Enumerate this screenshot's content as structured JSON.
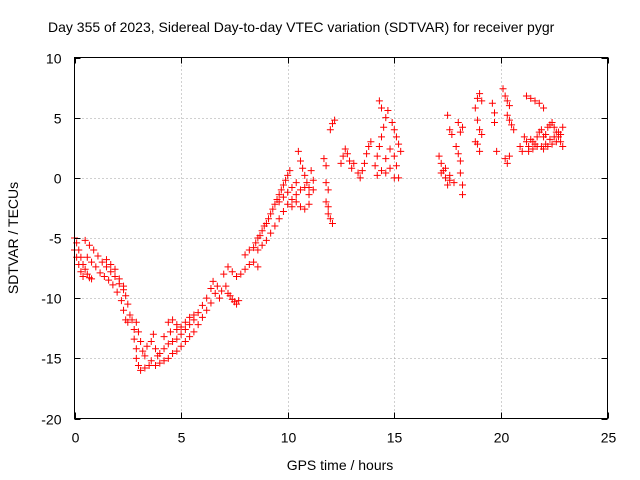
{
  "chart_data": {
    "type": "scatter",
    "title": "Day 355 of 2023, Sidereal Day-to-day VTEC variation (SDTVAR) for receiver pygr",
    "xlabel": "GPS time / hours",
    "ylabel": "SDTVAR / TECUs",
    "xlim": [
      0,
      25
    ],
    "ylim": [
      -20,
      10
    ],
    "xticks": [
      0,
      5,
      10,
      15,
      20,
      25
    ],
    "yticks": [
      -20,
      -15,
      -10,
      -5,
      0,
      5,
      10
    ],
    "xtick_labels": [
      "0",
      "5",
      "10",
      "15",
      "20",
      "25"
    ],
    "ytick_labels": [
      "-20",
      "-15",
      "-10",
      "-5",
      "0",
      "5",
      "10"
    ],
    "grid": true,
    "marker": "+",
    "color": "#ff0000",
    "series": [
      {
        "name": "SDTVAR",
        "points": [
          [
            0.0,
            -5.0
          ],
          [
            0.1,
            -5.4
          ],
          [
            0.2,
            -6.0
          ],
          [
            0.3,
            -6.6
          ],
          [
            0.4,
            -7.2
          ],
          [
            0.5,
            -7.6
          ],
          [
            0.6,
            -8.0
          ],
          [
            0.7,
            -8.3
          ],
          [
            0.8,
            -8.4
          ],
          [
            0.0,
            -6.0
          ],
          [
            0.1,
            -6.6
          ],
          [
            0.2,
            -7.2
          ],
          [
            0.3,
            -7.8
          ],
          [
            0.4,
            -8.2
          ],
          [
            0.5,
            -5.2
          ],
          [
            0.7,
            -5.6
          ],
          [
            0.9,
            -6.0
          ],
          [
            1.1,
            -6.5
          ],
          [
            1.3,
            -7.0
          ],
          [
            1.5,
            -7.4
          ],
          [
            1.7,
            -7.8
          ],
          [
            1.9,
            -8.2
          ],
          [
            2.1,
            -8.8
          ],
          [
            2.3,
            -9.3
          ],
          [
            2.4,
            -9.8
          ],
          [
            2.5,
            -10.5
          ],
          [
            0.6,
            -6.6
          ],
          [
            0.8,
            -7.0
          ],
          [
            1.0,
            -7.4
          ],
          [
            1.2,
            -7.9
          ],
          [
            1.4,
            -8.2
          ],
          [
            1.6,
            -8.5
          ],
          [
            1.8,
            -8.9
          ],
          [
            2.0,
            -9.5
          ],
          [
            2.2,
            -10.2
          ],
          [
            2.3,
            -11.0
          ],
          [
            2.4,
            -11.8
          ],
          [
            2.5,
            -12.0
          ],
          [
            1.5,
            -6.8
          ],
          [
            1.7,
            -7.2
          ],
          [
            1.9,
            -7.6
          ],
          [
            2.1,
            -8.4
          ],
          [
            2.3,
            -9.0
          ],
          [
            2.6,
            -11.4
          ],
          [
            2.7,
            -11.8
          ],
          [
            2.8,
            -12.6
          ],
          [
            2.8,
            -13.4
          ],
          [
            2.9,
            -14.2
          ],
          [
            2.9,
            -15.0
          ],
          [
            3.0,
            -15.6
          ],
          [
            3.1,
            -16.0
          ],
          [
            3.3,
            -15.8
          ],
          [
            3.5,
            -15.6
          ],
          [
            2.9,
            -12.0
          ],
          [
            3.0,
            -12.8
          ],
          [
            3.1,
            -13.6
          ],
          [
            3.2,
            -14.4
          ],
          [
            3.3,
            -14.8
          ],
          [
            3.4,
            -14.0
          ],
          [
            3.6,
            -13.6
          ],
          [
            3.8,
            -14.2
          ],
          [
            3.9,
            -14.8
          ],
          [
            3.7,
            -13.0
          ],
          [
            3.6,
            -15.2
          ],
          [
            3.8,
            -15.6
          ],
          [
            4.0,
            -15.4
          ],
          [
            4.2,
            -15.2
          ],
          [
            4.4,
            -15.0
          ],
          [
            4.6,
            -14.6
          ],
          [
            4.8,
            -14.4
          ],
          [
            5.0,
            -14.0
          ],
          [
            5.2,
            -13.6
          ],
          [
            5.4,
            -13.2
          ],
          [
            5.6,
            -12.8
          ],
          [
            5.8,
            -12.2
          ],
          [
            6.0,
            -11.6
          ],
          [
            6.2,
            -11.0
          ],
          [
            6.4,
            -10.4
          ],
          [
            6.6,
            -9.6
          ],
          [
            4.0,
            -14.6
          ],
          [
            4.2,
            -14.2
          ],
          [
            4.4,
            -13.8
          ],
          [
            4.6,
            -13.6
          ],
          [
            4.8,
            -13.4
          ],
          [
            5.0,
            -13.0
          ],
          [
            5.2,
            -12.6
          ],
          [
            5.4,
            -12.2
          ],
          [
            5.6,
            -11.8
          ],
          [
            5.8,
            -11.2
          ],
          [
            6.0,
            -10.6
          ],
          [
            6.2,
            -10.0
          ],
          [
            6.4,
            -9.2
          ],
          [
            6.5,
            -8.6
          ],
          [
            4.4,
            -12.0
          ],
          [
            4.6,
            -11.8
          ],
          [
            4.8,
            -12.2
          ],
          [
            5.0,
            -12.4
          ],
          [
            5.2,
            -12.0
          ],
          [
            5.4,
            -11.6
          ],
          [
            5.6,
            -11.4
          ],
          [
            4.2,
            -13.2
          ],
          [
            4.5,
            -12.8
          ],
          [
            4.8,
            -12.6
          ],
          [
            6.7,
            -9.0
          ],
          [
            6.9,
            -9.4
          ],
          [
            6.8,
            -10.0
          ],
          [
            7.0,
            -8.0
          ],
          [
            7.1,
            -9.0
          ],
          [
            7.2,
            -9.6
          ],
          [
            7.3,
            -9.8
          ],
          [
            7.4,
            -10.1
          ],
          [
            7.5,
            -10.3
          ],
          [
            7.6,
            -10.5
          ],
          [
            7.7,
            -10.2
          ],
          [
            7.2,
            -7.4
          ],
          [
            7.4,
            -7.8
          ],
          [
            7.6,
            -8.2
          ],
          [
            7.8,
            -8.0
          ],
          [
            8.0,
            -7.6
          ],
          [
            8.2,
            -7.2
          ],
          [
            8.4,
            -7.0
          ],
          [
            8.6,
            -7.4
          ],
          [
            8.0,
            -6.4
          ],
          [
            8.2,
            -6.0
          ],
          [
            8.4,
            -5.8
          ],
          [
            8.5,
            -5.4
          ],
          [
            8.6,
            -5.0
          ],
          [
            8.7,
            -4.8
          ],
          [
            8.8,
            -4.4
          ],
          [
            8.9,
            -4.0
          ],
          [
            9.0,
            -3.8
          ],
          [
            9.1,
            -3.4
          ],
          [
            9.2,
            -3.0
          ],
          [
            9.3,
            -2.6
          ],
          [
            9.4,
            -2.2
          ],
          [
            9.5,
            -1.8
          ],
          [
            9.6,
            -1.4
          ],
          [
            9.7,
            -1.0
          ],
          [
            9.8,
            -0.6
          ],
          [
            9.9,
            -0.2
          ],
          [
            10.0,
            0.2
          ],
          [
            10.1,
            0.6
          ],
          [
            8.6,
            -6.0
          ],
          [
            8.8,
            -5.6
          ],
          [
            9.0,
            -5.2
          ],
          [
            9.2,
            -4.6
          ],
          [
            9.4,
            -4.0
          ],
          [
            9.6,
            -3.4
          ],
          [
            9.8,
            -2.8
          ],
          [
            10.0,
            -2.2
          ],
          [
            10.2,
            -1.8
          ],
          [
            10.4,
            -1.4
          ],
          [
            10.6,
            -1.0
          ],
          [
            10.8,
            -0.8
          ],
          [
            9.6,
            -2.0
          ],
          [
            9.8,
            -1.6
          ],
          [
            10.0,
            -1.2
          ],
          [
            10.2,
            -0.8
          ],
          [
            10.4,
            -0.4
          ],
          [
            10.2,
            -2.4
          ],
          [
            10.4,
            -2.0
          ],
          [
            10.6,
            -2.4
          ],
          [
            10.8,
            -2.6
          ],
          [
            11.0,
            -2.2
          ],
          [
            11.0,
            -1.4
          ],
          [
            11.2,
            -1.0
          ],
          [
            10.5,
            2.2
          ],
          [
            10.6,
            1.4
          ],
          [
            10.7,
            0.8
          ],
          [
            10.8,
            0.2
          ],
          [
            10.9,
            -0.4
          ],
          [
            11.0,
            -0.8
          ],
          [
            11.1,
            0.6
          ],
          [
            11.2,
            -0.2
          ],
          [
            11.7,
            1.6
          ],
          [
            11.8,
            1.0
          ],
          [
            11.8,
            -0.4
          ],
          [
            11.9,
            -1.0
          ],
          [
            11.8,
            -2.0
          ],
          [
            11.9,
            -2.4
          ],
          [
            11.9,
            -3.0
          ],
          [
            12.0,
            -3.4
          ],
          [
            12.1,
            -3.8
          ],
          [
            12.0,
            4.0
          ],
          [
            12.1,
            4.5
          ],
          [
            12.2,
            4.8
          ],
          [
            12.5,
            1.2
          ],
          [
            12.6,
            1.8
          ],
          [
            12.7,
            2.4
          ],
          [
            12.8,
            2.0
          ],
          [
            12.9,
            1.4
          ],
          [
            13.0,
            0.8
          ],
          [
            13.1,
            1.2
          ],
          [
            13.3,
            0.4
          ],
          [
            13.4,
            0.0
          ],
          [
            13.5,
            0.6
          ],
          [
            13.6,
            1.2
          ],
          [
            13.7,
            2.0
          ],
          [
            13.8,
            2.6
          ],
          [
            13.9,
            3.0
          ],
          [
            14.1,
            1.0
          ],
          [
            14.2,
            1.8
          ],
          [
            14.3,
            2.6
          ],
          [
            14.4,
            3.4
          ],
          [
            14.5,
            4.2
          ],
          [
            14.6,
            5.0
          ],
          [
            14.7,
            5.6
          ],
          [
            14.3,
            6.4
          ],
          [
            14.4,
            5.8
          ],
          [
            14.2,
            0.2
          ],
          [
            14.4,
            0.6
          ],
          [
            14.6,
            0.4
          ],
          [
            14.8,
            0.8
          ],
          [
            14.6,
            1.6
          ],
          [
            14.8,
            2.4
          ],
          [
            15.0,
            1.8
          ],
          [
            15.1,
            1.0
          ],
          [
            14.9,
            4.6
          ],
          [
            15.0,
            4.0
          ],
          [
            15.1,
            3.4
          ],
          [
            15.2,
            2.8
          ],
          [
            15.3,
            2.2
          ],
          [
            15.0,
            0.0
          ],
          [
            15.2,
            0.0
          ],
          [
            17.1,
            1.8
          ],
          [
            17.2,
            1.2
          ],
          [
            17.3,
            0.6
          ],
          [
            17.4,
            0.0
          ],
          [
            17.5,
            -0.6
          ],
          [
            17.6,
            -0.2
          ],
          [
            17.2,
            0.4
          ],
          [
            17.4,
            0.8
          ],
          [
            17.6,
            0.2
          ],
          [
            17.8,
            -0.4
          ],
          [
            17.5,
            5.2
          ],
          [
            17.6,
            4.0
          ],
          [
            17.7,
            3.6
          ],
          [
            17.9,
            2.6
          ],
          [
            18.0,
            2.0
          ],
          [
            18.1,
            1.4
          ],
          [
            18.1,
            0.4
          ],
          [
            18.2,
            -0.6
          ],
          [
            18.2,
            -1.4
          ],
          [
            18.0,
            4.6
          ],
          [
            18.1,
            3.8
          ],
          [
            18.2,
            4.2
          ],
          [
            18.9,
            6.6
          ],
          [
            19.0,
            7.0
          ],
          [
            19.1,
            6.4
          ],
          [
            18.8,
            5.8
          ],
          [
            18.9,
            4.8
          ],
          [
            19.0,
            4.0
          ],
          [
            19.1,
            3.6
          ],
          [
            18.8,
            3.0
          ],
          [
            18.9,
            2.8
          ],
          [
            19.0,
            2.2
          ],
          [
            19.6,
            6.2
          ],
          [
            19.7,
            5.4
          ],
          [
            19.7,
            4.6
          ],
          [
            19.8,
            2.2
          ],
          [
            20.1,
            7.4
          ],
          [
            20.2,
            6.8
          ],
          [
            20.3,
            6.4
          ],
          [
            20.4,
            6.0
          ],
          [
            20.3,
            5.2
          ],
          [
            20.4,
            4.8
          ],
          [
            20.5,
            4.4
          ],
          [
            20.6,
            4.0
          ],
          [
            20.2,
            1.6
          ],
          [
            20.3,
            1.2
          ],
          [
            20.4,
            1.8
          ],
          [
            21.2,
            6.8
          ],
          [
            21.4,
            6.6
          ],
          [
            21.6,
            6.4
          ],
          [
            21.8,
            6.2
          ],
          [
            22.0,
            5.8
          ],
          [
            20.9,
            2.6
          ],
          [
            21.0,
            2.2
          ],
          [
            21.1,
            3.4
          ],
          [
            21.2,
            3.0
          ],
          [
            21.3,
            2.6
          ],
          [
            21.4,
            3.2
          ],
          [
            21.5,
            3.0
          ],
          [
            21.6,
            2.8
          ],
          [
            21.7,
            3.4
          ],
          [
            21.8,
            3.8
          ],
          [
            21.9,
            4.0
          ],
          [
            22.0,
            3.4
          ],
          [
            22.1,
            3.6
          ],
          [
            22.2,
            4.2
          ],
          [
            22.3,
            4.4
          ],
          [
            22.4,
            4.6
          ],
          [
            22.5,
            4.2
          ],
          [
            22.6,
            3.8
          ],
          [
            22.7,
            3.4
          ],
          [
            22.8,
            3.0
          ],
          [
            21.3,
            2.2
          ],
          [
            21.5,
            2.4
          ],
          [
            21.7,
            2.6
          ],
          [
            21.9,
            2.6
          ],
          [
            22.1,
            2.8
          ],
          [
            22.3,
            3.2
          ],
          [
            22.5,
            3.4
          ],
          [
            22.7,
            3.8
          ],
          [
            22.9,
            4.2
          ],
          [
            22.0,
            2.4
          ],
          [
            22.2,
            2.6
          ],
          [
            22.4,
            2.8
          ],
          [
            22.6,
            3.0
          ],
          [
            22.8,
            3.6
          ],
          [
            22.9,
            2.6
          ]
        ]
      }
    ]
  }
}
